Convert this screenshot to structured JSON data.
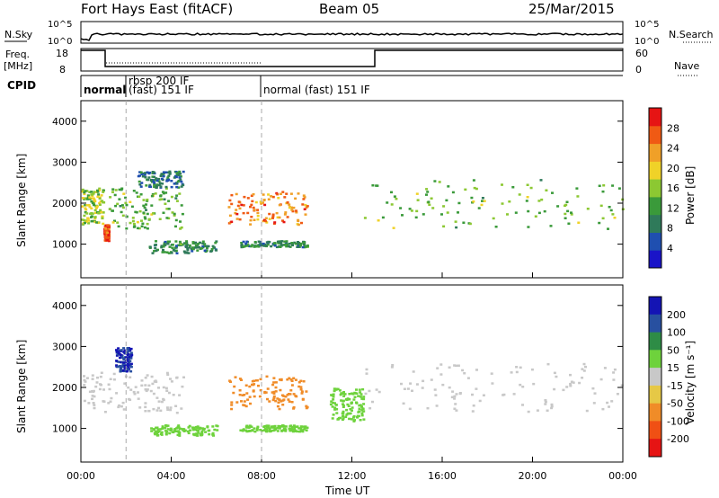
{
  "header": {
    "station": "Fort Hays East (fitACF)",
    "beam": "Beam 05",
    "date": "25/Mar/2015"
  },
  "top_panels": {
    "nsky_label": "N.Sky",
    "nsky_ticks": [
      "10^5",
      "10^0"
    ],
    "nsearch_label": "N.Search",
    "freq_label_line1": "Freq.",
    "freq_label_line2": "[MHz]",
    "freq_ticks": [
      "18",
      "8"
    ],
    "nave_label": "Nave",
    "nave_ticks": [
      "60",
      "0"
    ],
    "cpid_label": "CPID",
    "cpid_segments": [
      {
        "text": "normal",
        "start_hour": 0
      },
      {
        "text": "rbsp 200 IF",
        "start_hour": 2
      },
      {
        "text": "(fast) 151 IF",
        "start_hour": 2
      },
      {
        "text": "normal (fast) 151 IF",
        "start_hour": 8
      }
    ]
  },
  "x_axis": {
    "label": "Time UT",
    "ticks": [
      "00:00",
      "04:00",
      "08:00",
      "12:00",
      "16:00",
      "20:00",
      "00:00"
    ]
  },
  "power_panel": {
    "ylabel": "Slant Range [km]",
    "yticks": [
      "1000",
      "2000",
      "3000",
      "4000"
    ],
    "colorbar_label": "Power [dB]",
    "colorbar_ticks": [
      "4",
      "8",
      "12",
      "16",
      "20",
      "24",
      "28"
    ],
    "colors": [
      "#1a14c8",
      "#1f4fb0",
      "#2f7a5a",
      "#3a9a3a",
      "#8cc832",
      "#f0d228",
      "#f0a028",
      "#f05a14",
      "#e61414"
    ]
  },
  "velocity_panel": {
    "ylabel": "Slant Range [km]",
    "yticks": [
      "1000",
      "2000",
      "3000",
      "4000"
    ],
    "colorbar_label": "Velocity [m s⁻¹]",
    "colorbar_ticks": [
      "200",
      "100",
      "50",
      "15",
      "-15",
      "-50",
      "-100",
      "-200"
    ],
    "colors": [
      "#1414b4",
      "#2850a0",
      "#2e8c46",
      "#6ed23c",
      "#c8c8c8",
      "#e6c846",
      "#f08c28",
      "#f05014",
      "#e61414"
    ]
  },
  "chart_data": {
    "type": "heatmap",
    "x_range_hours": [
      0,
      24
    ],
    "y_range_km": [
      180,
      4500
    ],
    "grid": false,
    "vertical_markers_hours": [
      2,
      8
    ],
    "power_regions": [
      {
        "t": [
          0.0,
          1.0
        ],
        "r": [
          1500,
          2400
        ],
        "db": 16
      },
      {
        "t": [
          1.0,
          1.2
        ],
        "r": [
          1100,
          1500
        ],
        "db": 26
      },
      {
        "t": [
          1.2,
          4.5
        ],
        "r": [
          1400,
          2400
        ],
        "db": 14
      },
      {
        "t": [
          2.5,
          4.5
        ],
        "r": [
          2400,
          2800
        ],
        "db": 8
      },
      {
        "t": [
          6.5,
          10.0
        ],
        "r": [
          1500,
          2300
        ],
        "db": 24
      },
      {
        "t": [
          3.0,
          6.0
        ],
        "r": [
          800,
          1100
        ],
        "db": 10
      },
      {
        "t": [
          7.0,
          10.0
        ],
        "r": [
          950,
          1100
        ],
        "db": 10
      },
      {
        "t": [
          12.5,
          24.0
        ],
        "r": [
          1400,
          2600
        ],
        "db": 14
      }
    ],
    "velocity_regions": [
      {
        "t": [
          0.0,
          4.5
        ],
        "r": [
          1400,
          2400
        ],
        "v": 0
      },
      {
        "t": [
          1.5,
          2.2
        ],
        "r": [
          2400,
          3000
        ],
        "v": 200
      },
      {
        "t": [
          6.5,
          10.0
        ],
        "r": [
          1500,
          2300
        ],
        "v": -70
      },
      {
        "t": [
          3.0,
          6.0
        ],
        "r": [
          850,
          1100
        ],
        "v": 30
      },
      {
        "t": [
          7.0,
          10.0
        ],
        "r": [
          950,
          1100
        ],
        "v": 30
      },
      {
        "t": [
          11.0,
          12.5
        ],
        "r": [
          1200,
          2000
        ],
        "v": 30
      },
      {
        "t": [
          12.5,
          24.0
        ],
        "r": [
          1400,
          2600
        ],
        "v": 0
      }
    ]
  }
}
